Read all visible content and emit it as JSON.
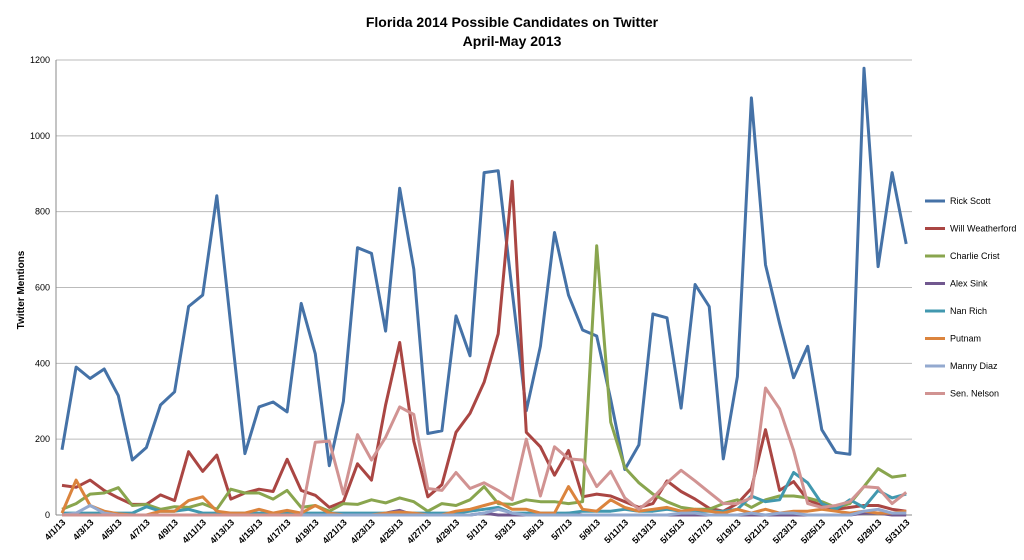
{
  "chart_data": {
    "type": "line",
    "title": "Florida 2014 Possible Candidates on Twitter",
    "subtitle": "April-May 2013",
    "xlabel": "",
    "ylabel": "Twitter Mentions",
    "ylim": [
      0,
      1200
    ],
    "yticks": [
      0,
      200,
      400,
      600,
      800,
      1000,
      1200
    ],
    "grid": true,
    "legend": "right",
    "x": [
      "4/1/13",
      "4/2/13",
      "4/3/13",
      "4/4/13",
      "4/5/13",
      "4/6/13",
      "4/7/13",
      "4/8/13",
      "4/9/13",
      "4/10/13",
      "4/11/13",
      "4/12/13",
      "4/13/13",
      "4/14/13",
      "4/15/13",
      "4/16/13",
      "4/17/13",
      "4/18/13",
      "4/19/13",
      "4/20/13",
      "4/21/13",
      "4/22/13",
      "4/23/13",
      "4/24/13",
      "4/25/13",
      "4/26/13",
      "4/27/13",
      "4/28/13",
      "4/29/13",
      "4/30/13",
      "5/1/13",
      "5/2/13",
      "5/3/13",
      "5/4/13",
      "5/5/13",
      "5/6/13",
      "5/7/13",
      "5/8/13",
      "5/9/13",
      "5/10/13",
      "5/11/13",
      "5/12/13",
      "5/13/13",
      "5/14/13",
      "5/15/13",
      "5/16/13",
      "5/17/13",
      "5/18/13",
      "5/19/13",
      "5/20/13",
      "5/21/13",
      "5/22/13",
      "5/23/13",
      "5/24/13",
      "5/25/13",
      "5/26/13",
      "5/27/13",
      "5/28/13",
      "5/29/13",
      "5/30/13",
      "5/31/13"
    ],
    "xtick_labels": [
      "4/1/13",
      "4/3/13",
      "4/5/13",
      "4/7/13",
      "4/9/13",
      "4/11/13",
      "4/13/13",
      "4/15/13",
      "4/17/13",
      "4/19/13",
      "4/21/13",
      "4/23/13",
      "4/25/13",
      "4/27/13",
      "4/29/13",
      "5/1/13",
      "5/3/13",
      "5/5/13",
      "5/7/13",
      "5/9/13",
      "5/11/13",
      "5/13/13",
      "5/15/13",
      "5/17/13",
      "5/19/13",
      "5/21/13",
      "5/23/13",
      "5/25/13",
      "5/27/13",
      "5/29/13",
      "5/31/13"
    ],
    "series": [
      {
        "name": "Rick Scott",
        "color": "#4572a7",
        "values": [
          172,
          390,
          360,
          385,
          315,
          145,
          178,
          290,
          325,
          550,
          580,
          842,
          500,
          162,
          285,
          298,
          272,
          558,
          425,
          130,
          300,
          705,
          690,
          485,
          862,
          648,
          215,
          222,
          525,
          420,
          903,
          908,
          590,
          275,
          445,
          745,
          580,
          488,
          472,
          305,
          120,
          185,
          530,
          520,
          282,
          608,
          550,
          148,
          365,
          1100,
          660,
          505,
          362,
          445,
          225,
          165,
          160,
          1178,
          655,
          903,
          715
        ]
      },
      {
        "name": "Will Weatherford",
        "color": "#aa4643",
        "values": [
          78,
          73,
          92,
          65,
          45,
          28,
          28,
          53,
          38,
          167,
          115,
          158,
          42,
          58,
          68,
          62,
          147,
          65,
          52,
          20,
          35,
          135,
          92,
          290,
          455,
          195,
          48,
          80,
          218,
          268,
          350,
          478,
          880,
          218,
          180,
          105,
          170,
          48,
          55,
          50,
          35,
          20,
          30,
          90,
          62,
          42,
          18,
          10,
          30,
          70,
          225,
          65,
          88,
          40,
          25,
          15,
          20,
          25,
          25,
          15,
          10
        ]
      },
      {
        "name": "Charlie Crist",
        "color": "#89a54e",
        "values": [
          15,
          30,
          55,
          58,
          72,
          25,
          28,
          15,
          22,
          20,
          30,
          15,
          68,
          58,
          58,
          42,
          65,
          20,
          25,
          10,
          30,
          28,
          40,
          32,
          45,
          35,
          10,
          30,
          25,
          40,
          75,
          30,
          28,
          40,
          35,
          35,
          30,
          35,
          710,
          245,
          125,
          85,
          55,
          35,
          20,
          15,
          15,
          30,
          40,
          20,
          40,
          50,
          50,
          45,
          35,
          20,
          30,
          75,
          122,
          100,
          105
        ]
      },
      {
        "name": "Alex Sink",
        "color": "#71588f",
        "values": [
          0,
          0,
          0,
          0,
          0,
          0,
          0,
          0,
          0,
          0,
          0,
          0,
          0,
          0,
          0,
          0,
          0,
          0,
          0,
          0,
          0,
          0,
          0,
          5,
          12,
          0,
          0,
          0,
          0,
          0,
          5,
          0,
          0,
          0,
          0,
          0,
          5,
          0,
          0,
          0,
          0,
          0,
          0,
          0,
          0,
          0,
          0,
          0,
          0,
          0,
          0,
          0,
          0,
          0,
          0,
          0,
          0,
          5,
          5,
          0,
          0
        ]
      },
      {
        "name": "Nan Rich",
        "color": "#4198af",
        "values": [
          5,
          5,
          5,
          5,
          5,
          5,
          22,
          10,
          10,
          15,
          5,
          5,
          5,
          5,
          5,
          5,
          5,
          5,
          5,
          5,
          5,
          5,
          5,
          5,
          5,
          5,
          5,
          5,
          5,
          10,
          15,
          20,
          5,
          5,
          5,
          5,
          5,
          10,
          10,
          10,
          15,
          10,
          10,
          15,
          10,
          10,
          10,
          10,
          15,
          50,
          35,
          40,
          112,
          85,
          30,
          15,
          40,
          20,
          65,
          45,
          55
        ]
      },
      {
        "name": "Putnam",
        "color": "#db843d",
        "values": [
          5,
          92,
          25,
          10,
          3,
          0,
          0,
          10,
          10,
          38,
          48,
          10,
          5,
          5,
          15,
          5,
          12,
          5,
          25,
          5,
          0,
          0,
          0,
          5,
          8,
          5,
          0,
          0,
          10,
          15,
          25,
          35,
          15,
          15,
          5,
          5,
          75,
          15,
          10,
          40,
          20,
          10,
          15,
          20,
          10,
          15,
          10,
          5,
          15,
          5,
          15,
          5,
          10,
          10,
          15,
          10,
          5,
          10,
          5,
          5,
          10
        ]
      },
      {
        "name": "Manny Diaz",
        "color": "#93a9cf",
        "values": [
          0,
          5,
          25,
          5,
          0,
          0,
          0,
          0,
          0,
          0,
          0,
          0,
          0,
          0,
          0,
          0,
          0,
          0,
          0,
          0,
          0,
          0,
          0,
          0,
          0,
          0,
          0,
          0,
          0,
          0,
          5,
          15,
          5,
          0,
          0,
          0,
          0,
          0,
          0,
          0,
          0,
          0,
          0,
          0,
          5,
          5,
          0,
          0,
          0,
          5,
          0,
          5,
          5,
          0,
          0,
          0,
          0,
          10,
          15,
          5,
          5
        ]
      },
      {
        "name": "Sen. Nelson",
        "color": "#d19392",
        "values": [
          0,
          0,
          0,
          0,
          0,
          0,
          0,
          0,
          0,
          0,
          0,
          0,
          0,
          0,
          0,
          0,
          0,
          0,
          192,
          195,
          55,
          212,
          145,
          205,
          285,
          265,
          70,
          65,
          112,
          70,
          85,
          65,
          40,
          200,
          50,
          180,
          148,
          145,
          75,
          115,
          45,
          15,
          45,
          85,
          118,
          90,
          60,
          30,
          30,
          45,
          335,
          280,
          170,
          30,
          20,
          25,
          35,
          75,
          72,
          30,
          60
        ]
      }
    ]
  }
}
